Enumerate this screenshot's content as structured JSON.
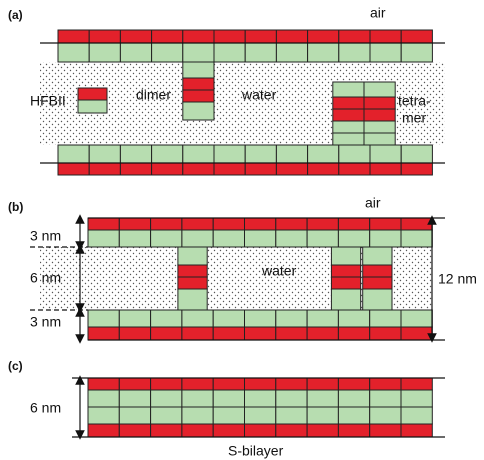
{
  "panels": {
    "a": {
      "label": "(a)",
      "air": "air",
      "monomer": "HFBII",
      "dimer": "dimer",
      "water": "water",
      "tetramer_1": "tetra-",
      "tetramer_2": "mer"
    },
    "b": {
      "label": "(b)",
      "air": "air",
      "water": "water",
      "top_thickness": "3 nm",
      "middle_thickness": "6 nm",
      "bottom_thickness": "3 nm",
      "total_thickness": "12 nm"
    },
    "c": {
      "label": "(c)",
      "thickness": "6 nm",
      "caption": "S-bilayer"
    }
  }
}
